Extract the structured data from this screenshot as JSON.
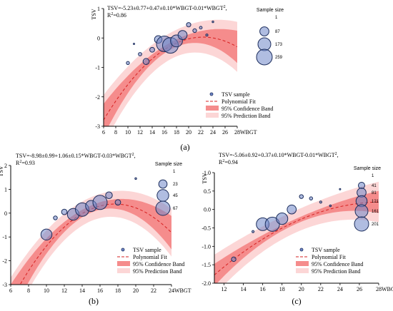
{
  "colors": {
    "prediction_band": "#fcd6d6",
    "confidence_band": "#f58c8c",
    "fit_line": "#d62020",
    "marker_fill": "#6f86c8",
    "marker_edge": "#1c2d5c"
  },
  "chart_data": [
    {
      "panel_label": "(a)",
      "type": "scatter",
      "equation_line1": "TSV=-5.23±0.77+0.47±0.10*WBGT-0.01*WBGT²,",
      "equation_line2": "R²=0.86",
      "xlabel": "WBGT",
      "ylabel": "TSV",
      "xlim": [
        6,
        28
      ],
      "ylim": [
        -3,
        1
      ],
      "xticks": [
        6,
        8,
        10,
        12,
        14,
        16,
        18,
        20,
        22,
        24,
        26,
        28
      ],
      "yticks": [
        -3,
        -2,
        -1,
        0,
        1
      ],
      "fit_coefficients": [
        -5.23,
        0.47,
        -0.0105
      ],
      "confidence_halfwidth": [
        0.55,
        0.12,
        0.55
      ],
      "prediction_halfwidth": [
        0.85,
        0.45,
        0.85
      ],
      "points": [
        {
          "x": 10,
          "y": -0.85,
          "n": 10
        },
        {
          "x": 11,
          "y": -0.2,
          "n": 1
        },
        {
          "x": 12,
          "y": -0.55,
          "n": 12
        },
        {
          "x": 13,
          "y": -0.8,
          "n": 40
        },
        {
          "x": 14,
          "y": -0.4,
          "n": 25
        },
        {
          "x": 15,
          "y": -0.05,
          "n": 60
        },
        {
          "x": 16,
          "y": -0.2,
          "n": 259
        },
        {
          "x": 17,
          "y": -0.25,
          "n": 259
        },
        {
          "x": 18,
          "y": -0.1,
          "n": 150
        },
        {
          "x": 19,
          "y": 0.1,
          "n": 87
        },
        {
          "x": 20,
          "y": 0.45,
          "n": 20
        },
        {
          "x": 21,
          "y": 0.25,
          "n": 15
        },
        {
          "x": 22,
          "y": 0.35,
          "n": 8
        },
        {
          "x": 23,
          "y": 0.1,
          "n": 5
        },
        {
          "x": 24,
          "y": 0.55,
          "n": 3
        }
      ],
      "legend": {
        "entries": [
          "TSV sample",
          "Polynomial Fit",
          "95% Confidence Band",
          "95% Prediction Band"
        ],
        "placement": "bottom-right"
      },
      "size_legend": {
        "title": "Sample size",
        "values": [
          1,
          87,
          173,
          259
        ]
      }
    },
    {
      "panel_label": "(b)",
      "type": "scatter",
      "equation_line1": "TSV=-8.98±0.99+1.06±0.15*WBGT-0.03*WBGT²,",
      "equation_line2": "R²=0.93",
      "xlabel": "WBGT",
      "ylabel": "TSV",
      "xlim": [
        6,
        24
      ],
      "ylim": [
        -3,
        2
      ],
      "xticks": [
        6,
        8,
        10,
        12,
        14,
        16,
        18,
        20,
        22,
        24
      ],
      "yticks": [
        -3,
        -2,
        -1,
        0,
        1,
        2
      ],
      "fit_coefficients": [
        -8.98,
        1.06,
        -0.03
      ],
      "confidence_halfwidth": [
        0.7,
        0.15,
        0.7
      ],
      "prediction_halfwidth": [
        1.0,
        0.5,
        1.0
      ],
      "points": [
        {
          "x": 10,
          "y": -0.9,
          "n": 40
        },
        {
          "x": 11,
          "y": -0.2,
          "n": 5
        },
        {
          "x": 12,
          "y": 0.05,
          "n": 10
        },
        {
          "x": 13,
          "y": -0.05,
          "n": 45
        },
        {
          "x": 14,
          "y": 0.15,
          "n": 60
        },
        {
          "x": 15,
          "y": 0.3,
          "n": 40
        },
        {
          "x": 16,
          "y": 0.45,
          "n": 67
        },
        {
          "x": 17,
          "y": 0.75,
          "n": 15
        },
        {
          "x": 18,
          "y": 0.45,
          "n": 10
        },
        {
          "x": 20,
          "y": 1.45,
          "n": 1
        }
      ],
      "legend": {
        "entries": [
          "TSV sample",
          "Polynomial Fit",
          "95% Confidence Band",
          "95% Prediction Band"
        ],
        "placement": "bottom-right"
      },
      "size_legend": {
        "title": "Sample size",
        "values": [
          1,
          23,
          45,
          67
        ]
      }
    },
    {
      "panel_label": "(c)",
      "type": "scatter",
      "equation_line1": "TSV=-5.06±0.92+0.37±0.10*WBGT-0.01*WBGT²,",
      "equation_line2": "R²=0.94",
      "xlabel": "WBGT",
      "ylabel": "TSV",
      "xlim": [
        11,
        28
      ],
      "ylim": [
        -2,
        1
      ],
      "xticks": [
        12,
        14,
        16,
        18,
        20,
        22,
        24,
        26,
        28
      ],
      "yticks": [
        -2.0,
        -1.5,
        -1.0,
        -0.5,
        0.0,
        0.5,
        1.0
      ],
      "ytick_labels": [
        "-2.0",
        "-1.5",
        "-1.0",
        "-0.5",
        "0.0",
        "0.5",
        "1.0"
      ],
      "fit_coefficients": [
        -5.06,
        0.37,
        -0.0065
      ],
      "confidence_halfwidth": [
        0.3,
        0.07,
        0.3
      ],
      "prediction_halfwidth": [
        0.55,
        0.3,
        0.55
      ],
      "points": [
        {
          "x": 13,
          "y": -1.35,
          "n": 20
        },
        {
          "x": 15,
          "y": -0.6,
          "n": 5
        },
        {
          "x": 16,
          "y": -0.4,
          "n": 160
        },
        {
          "x": 17,
          "y": -0.4,
          "n": 201
        },
        {
          "x": 18,
          "y": -0.25,
          "n": 130
        },
        {
          "x": 19,
          "y": 0.0,
          "n": 81
        },
        {
          "x": 20,
          "y": 0.35,
          "n": 15
        },
        {
          "x": 21,
          "y": 0.3,
          "n": 10
        },
        {
          "x": 22,
          "y": 0.2,
          "n": 5
        },
        {
          "x": 23,
          "y": 0.1,
          "n": 3
        },
        {
          "x": 24,
          "y": 0.55,
          "n": 2
        }
      ],
      "legend": {
        "entries": [
          "TSV sample",
          "Polynomial Fit",
          "95% Confidence Band",
          "95% Prediction Band"
        ],
        "placement": "bottom-right"
      },
      "size_legend": {
        "title": "Sample size",
        "values": [
          1,
          41,
          81,
          121,
          161,
          201
        ]
      }
    }
  ]
}
